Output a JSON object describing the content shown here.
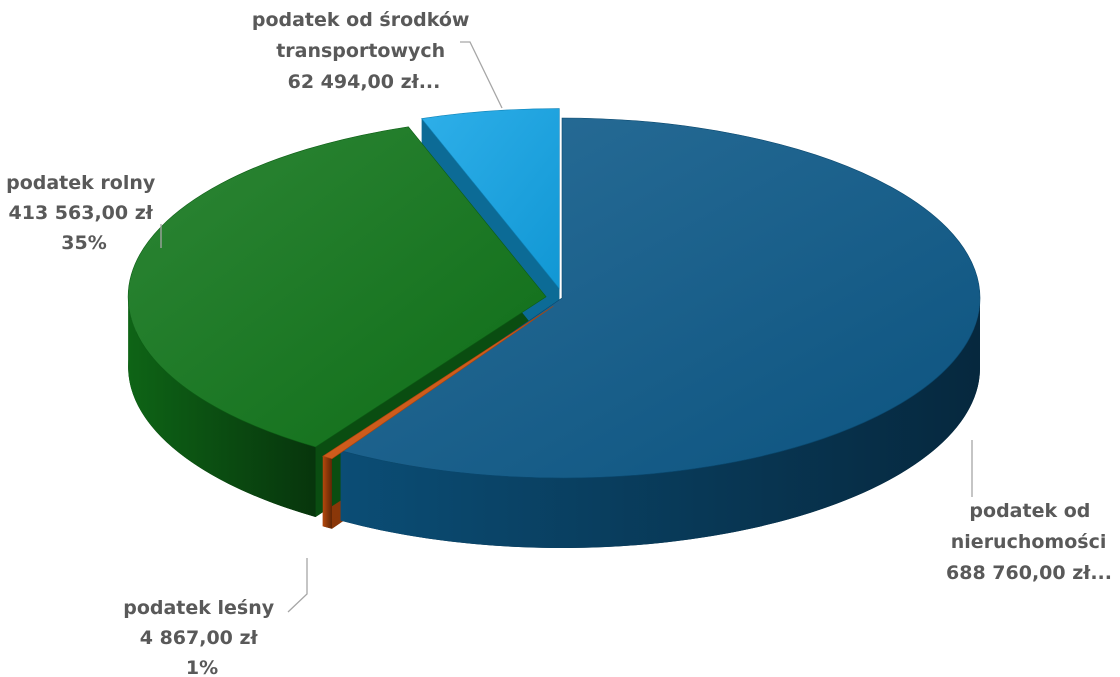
{
  "chart_data": {
    "type": "pie",
    "style": "3d-exploded",
    "title": "",
    "slices": [
      {
        "name": "podatek od nieruchomości",
        "value": 688760.0,
        "color": "#0d5a8a",
        "label_lines": [
          "podatek od",
          "nieruchomości",
          "688 760,00 zł..."
        ]
      },
      {
        "name": "podatek leśny",
        "value": 4867.0,
        "color": "#d4550e",
        "label_lines": [
          "podatek leśny",
          "4 867,00 zł",
          "1%"
        ]
      },
      {
        "name": "podatek rolny",
        "value": 413563.0,
        "color": "#10761a",
        "label_lines": [
          "podatek rolny",
          "413 563,00 zł",
          "35%"
        ]
      },
      {
        "name": "podatek od środków transportowych",
        "value": 62494.0,
        "color": "#12a4e6",
        "label_lines": [
          "podatek od środków",
          "transportowych",
          "62 494,00 zł..."
        ]
      }
    ],
    "legend": "none"
  }
}
